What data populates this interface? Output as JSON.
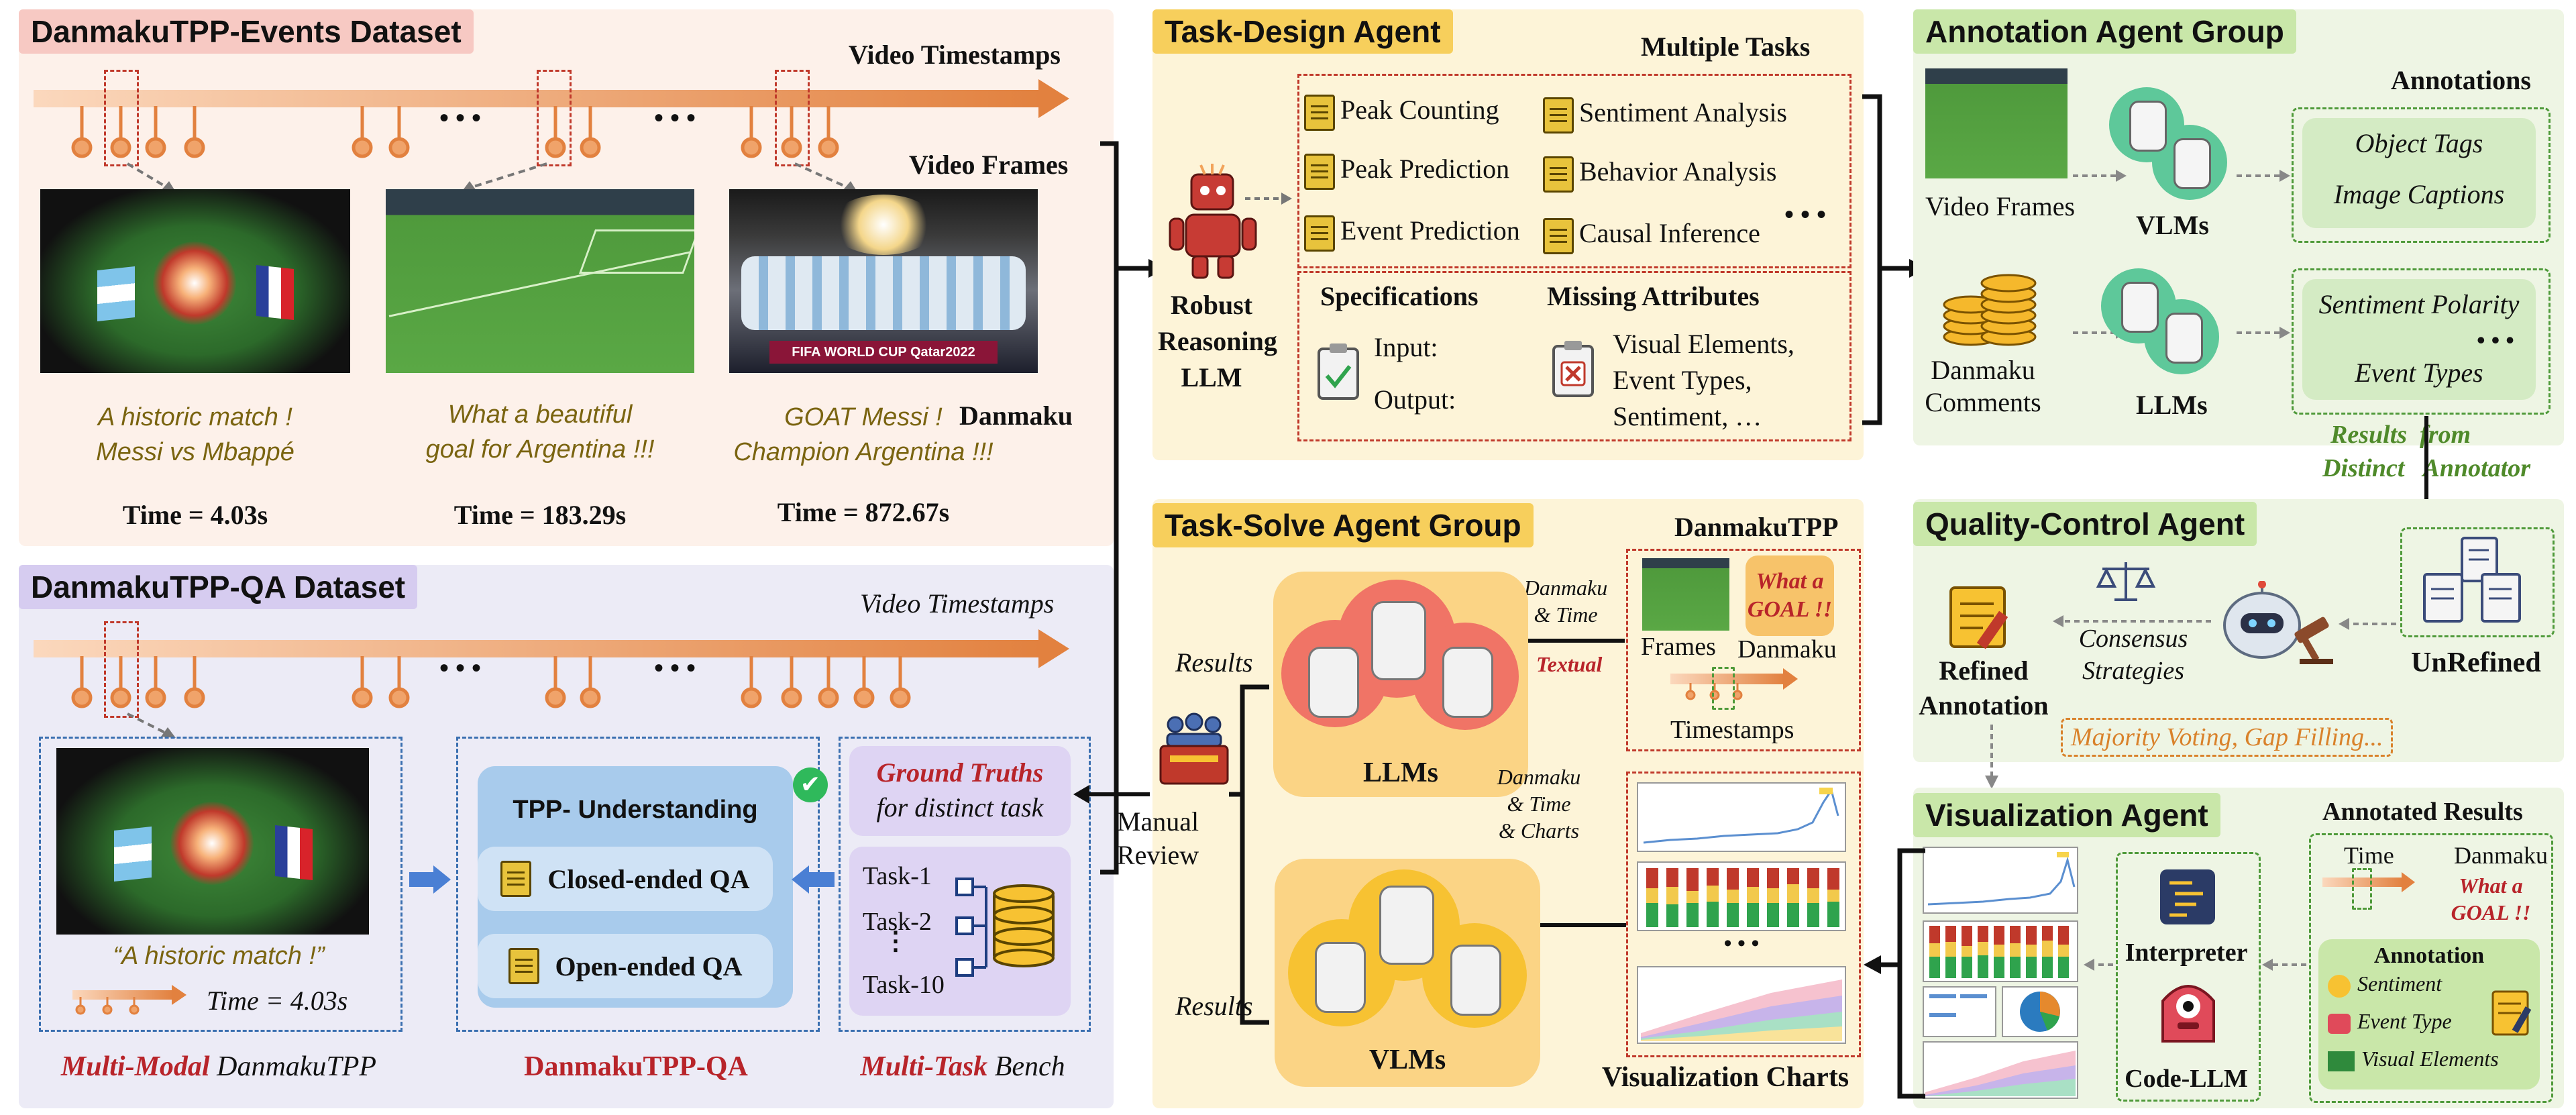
{
  "events": {
    "title": "DanmakuTPP-Events Dataset",
    "timeline_label": "Video Timestamps",
    "frames_label": "Video Frames",
    "danmaku_label": "Danmaku",
    "ellipsis": "• • •",
    "captions": [
      {
        "line1": "A historic match !",
        "line2": "Messi vs Mbappé",
        "time": "Time = 4.03s"
      },
      {
        "line1": "What a beautiful",
        "line2": "goal for Argentina !!!",
        "time": "Time = 183.29s"
      },
      {
        "line1": "GOAT Messi !",
        "line2": "Champion Argentina !!!",
        "time": "Time = 872.67s"
      }
    ],
    "frame3_banner": "FIFA WORLD CUP Qatar2022"
  },
  "qa": {
    "title": "DanmakuTPP-QA Dataset",
    "timeline_label": "Video Timestamps",
    "caption_quote": "“A historic match !”",
    "caption_time": "Time = 4.03s",
    "bottom_left_em": "Multi-Modal",
    "bottom_left_rest": " DanmakuTPP",
    "bottom_mid": "DanmakuTPP-QA",
    "bottom_right_em": "Multi-Task",
    "bottom_right_rest": " Bench",
    "tpp_understanding": "TPP- Understanding",
    "closed_qa": "Closed-ended QA",
    "open_qa": "Open-ended QA",
    "gt_line1": "Ground Truths",
    "gt_line2": "for distinct task",
    "tasks": [
      "Task-1",
      "Task-2",
      "Task-10"
    ],
    "task_dots": "⋮"
  },
  "task_design": {
    "title": "Task-Design Agent",
    "multiple_tasks": "Multiple Tasks",
    "llm_label_1": "Robust",
    "llm_label_2": "Reasoning",
    "llm_label_3": "LLM",
    "tasks_left": [
      "Peak Counting",
      "Peak Prediction",
      "Event Prediction"
    ],
    "tasks_right": [
      "Sentiment Analysis",
      "Behavior Analysis",
      "Causal Inference"
    ],
    "tasks_more": "• • •",
    "specifications": "Specifications",
    "input": "Input:",
    "output": "Output:",
    "missing_attributes": "Missing Attributes",
    "missing_list": [
      "Visual Elements,",
      "Event Types,",
      "Sentiment, …"
    ]
  },
  "annotation": {
    "title": "Annotation Agent Group",
    "annotations": "Annotations",
    "video_frames": "Video Frames",
    "vlms": "VLMs",
    "danmaku_1": "Danmaku",
    "danmaku_2": "Comments",
    "llms": "LLMs",
    "object_tags": "Object Tags",
    "image_captions": "Image Captions",
    "sentiment_polarity": "Sentiment Polarity",
    "more": "• • •",
    "event_types": "Event Types",
    "results_from": "Results  from",
    "distinct_annotator": "Distinct   Annotator"
  },
  "quality": {
    "title": "Quality-Control Agent",
    "refined_1": "Refined",
    "refined_2": "Annotation",
    "consensus_1": "Consensus",
    "consensus_2": "Strategies",
    "unrefined": "UnRefined",
    "strategies": "Majority Voting, Gap Filling..."
  },
  "solve": {
    "title": "Task-Solve Agent Group",
    "danmakutpp": "DanmakuTPP",
    "frames": "Frames",
    "danmaku": "Danmaku",
    "timestamps": "Timestamps",
    "goal_1": "What a",
    "goal_2": "GOAL !!",
    "danmaku_time_1": "Danmaku",
    "danmaku_time_2": "& Time",
    "textual": "Textual",
    "dtc_1": "Danmaku",
    "dtc_2": "& Time",
    "dtc_3": "& Charts",
    "llms": "LLMs",
    "vlms": "VLMs",
    "results": "Results",
    "manual_1": "Manual",
    "manual_2": "Review",
    "vis_charts": "Visualization Charts",
    "dots": "• • •"
  },
  "visual": {
    "title": "Visualization Agent",
    "annotated_results": "Annotated Results",
    "time": "Time",
    "danmaku": "Danmaku",
    "goal_1": "What a",
    "goal_2": "GOAL !!",
    "annotation": "Annotation",
    "sentiment": "Sentiment",
    "event_type": "Event Type",
    "visual_elements": "Visual Elements",
    "interpreter": "Interpreter",
    "code_llm": "Code-LLM"
  },
  "colors": {
    "events_bg": "#fdf1ea",
    "events_title": "#f7c9c3",
    "qa_bg": "#ecebf6",
    "qa_title": "#d6ccf0",
    "agent_bg": "#fdf4d8",
    "agent_title": "#f7cf5c",
    "green_bg": "#eef5e4",
    "green_title": "#c9e7a9",
    "timeline": "#e2813f",
    "accent_red": "#b8242a",
    "olive_text": "#7a6410"
  }
}
